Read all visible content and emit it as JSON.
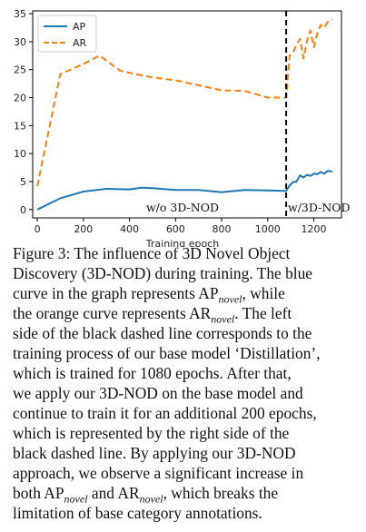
{
  "chart_data": {
    "type": "line",
    "xlabel": "Training epoch",
    "ylabel": "",
    "xlim": [
      -20,
      1320
    ],
    "ylim": [
      -1.5,
      35.5
    ],
    "xticks": [
      0,
      200,
      400,
      600,
      800,
      1000,
      1200
    ],
    "yticks": [
      0,
      5,
      10,
      15,
      20,
      25,
      30,
      35
    ],
    "grid": false,
    "legend": "top-left",
    "series": [
      {
        "name": "AP",
        "color": "#1f77b4",
        "style": "solid",
        "x": [
          0,
          100,
          200,
          300,
          400,
          450,
          500,
          600,
          700,
          800,
          900,
          1000,
          1080,
          1095,
          1110,
          1125,
          1140,
          1155,
          1170,
          1185,
          1200,
          1215,
          1230,
          1245,
          1260,
          1280
        ],
        "y": [
          0.0,
          2.0,
          3.2,
          3.7,
          3.6,
          3.9,
          3.8,
          3.5,
          3.5,
          3.1,
          3.5,
          3.4,
          3.3,
          4.3,
          4.9,
          5.0,
          6.1,
          5.7,
          6.2,
          6.0,
          6.4,
          6.3,
          6.7,
          6.4,
          6.9,
          6.8
        ]
      },
      {
        "name": "AR",
        "color": "#ff7f0e",
        "style": "dashed",
        "x": [
          0,
          100,
          200,
          270,
          360,
          450,
          500,
          600,
          700,
          800,
          900,
          1000,
          1080,
          1095,
          1110,
          1125,
          1140,
          1155,
          1170,
          1185,
          1200,
          1215,
          1230,
          1245,
          1260,
          1280
        ],
        "y": [
          4.2,
          24.2,
          26.0,
          27.5,
          24.8,
          24.0,
          23.6,
          23.1,
          22.2,
          21.3,
          21.2,
          20.0,
          20.0,
          27.5,
          28.0,
          29.5,
          30.5,
          27.0,
          30.0,
          32.0,
          29.0,
          31.5,
          33.0,
          32.5,
          33.5,
          34.0
        ]
      }
    ],
    "vline": {
      "x": 1080,
      "color": "#000000",
      "style": "dashed"
    },
    "annotations": {
      "left": "w/o 3D-NOD",
      "right": "w/3D-NOD"
    }
  },
  "caption": {
    "lines": [
      {
        "segments": [
          {
            "t": "Figure 3: The influence of 3D Novel Object"
          }
        ]
      },
      {
        "segments": [
          {
            "t": "Discovery (3D-NOD) during training. The blue"
          }
        ]
      },
      {
        "segments": [
          {
            "t": "curve in the graph represents AP"
          },
          {
            "sub": "novel"
          },
          {
            "t": ", while"
          }
        ]
      },
      {
        "segments": [
          {
            "t": "the orange curve represents AR"
          },
          {
            "sub": "novel"
          },
          {
            "t": ". The left"
          }
        ]
      },
      {
        "segments": [
          {
            "t": "side of the black dashed line corresponds to the"
          }
        ]
      },
      {
        "segments": [
          {
            "t": "training process of our base model ‘Distillation’,"
          }
        ]
      },
      {
        "segments": [
          {
            "t": "which is trained for 1080 epochs. After that,"
          }
        ]
      },
      {
        "segments": [
          {
            "t": "we apply our 3D-NOD on the base model and"
          }
        ]
      },
      {
        "segments": [
          {
            "t": "continue to train it for an additional 200 epochs,"
          }
        ]
      },
      {
        "segments": [
          {
            "t": "which is represented by the right side of the"
          }
        ]
      },
      {
        "segments": [
          {
            "t": "black dashed line. By applying our 3D-NOD"
          }
        ]
      },
      {
        "segments": [
          {
            "t": "approach, we observe a significant increase in"
          }
        ]
      },
      {
        "segments": [
          {
            "t": "both AP"
          },
          {
            "sub": "novel"
          },
          {
            "t": " and AR"
          },
          {
            "sub": "novel"
          },
          {
            "t": ", which breaks the"
          }
        ]
      },
      {
        "segments": [
          {
            "t": "limitation of base category annotations."
          }
        ]
      }
    ]
  }
}
